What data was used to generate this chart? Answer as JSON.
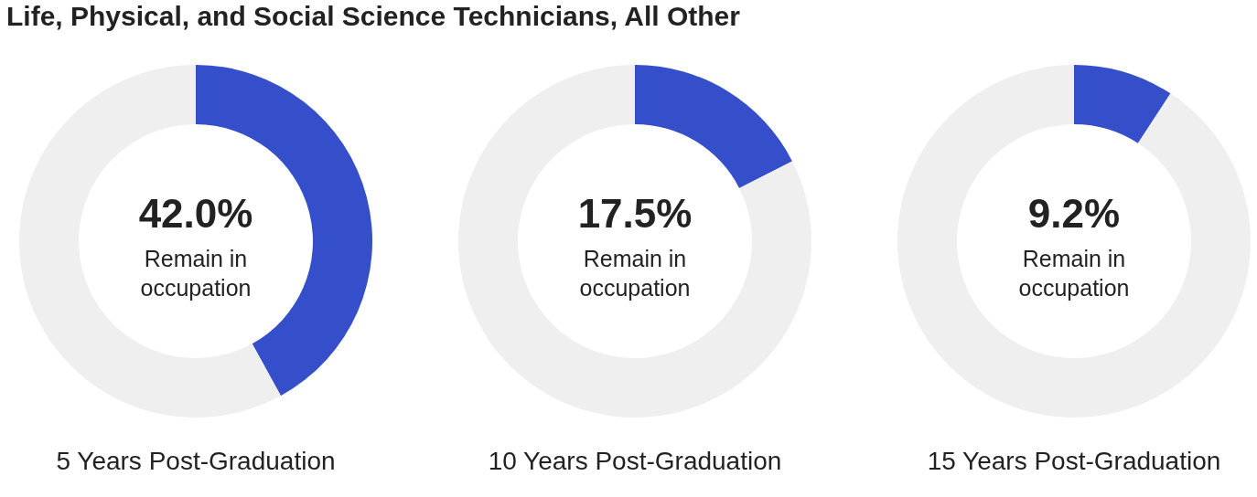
{
  "chart_data": [
    {
      "type": "donut",
      "title": "Life, Physical, and Social Science Technicians, All Other",
      "xlabel": "5 Years Post-Graduation",
      "categories": [
        "Remain in occupation",
        null
      ],
      "values": [
        42.0,
        58.0
      ],
      "colors": [
        "#344fc9",
        "#efefef"
      ],
      "value_labels": [
        "42.0%",
        null
      ]
    },
    {
      "type": "donut",
      "xlabel": "10 Years Post-Graduation",
      "categories": [
        "Remain in occupation",
        null
      ],
      "values": [
        17.5,
        82.5
      ],
      "colors": [
        "#344fc9",
        "#efefef"
      ],
      "value_labels": [
        "17.5%",
        null
      ]
    },
    {
      "type": "donut",
      "xlabel": "15 Years Post-Graduation",
      "categories": [
        "Remain in occupation",
        null
      ],
      "values": [
        9.2,
        90.8
      ],
      "colors": [
        "#344fc9",
        "#efefef"
      ],
      "value_labels": [
        "9.2%",
        null
      ]
    }
  ]
}
